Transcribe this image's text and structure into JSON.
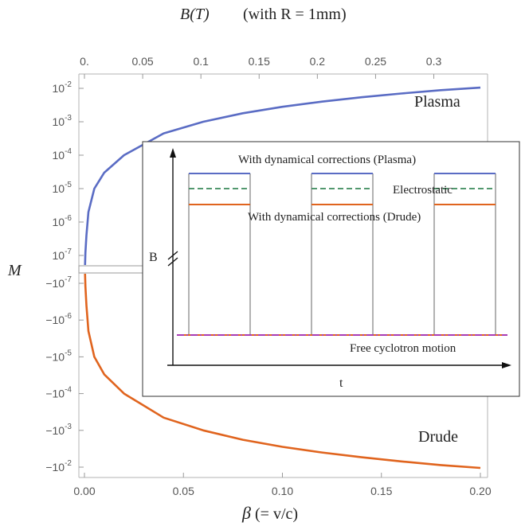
{
  "chart_data": [
    {
      "type": "line",
      "xlabel": {
        "prefix": "β",
        "rest": "(= v/c)"
      },
      "top_axis_label": {
        "main": "B(T)",
        "note": "(with R = 1mm)"
      },
      "ylabel": "M",
      "xlim": [
        0,
        0.2
      ],
      "x_ticks": [
        "0.00",
        "0.05",
        "0.10",
        "0.15",
        "0.20"
      ],
      "top_ticks": [
        "0.",
        "0.05",
        "0.1",
        "0.15",
        "0.2",
        "0.25",
        "0.3"
      ],
      "top_axis_max": 0.34,
      "y_ticks_upper": [
        {
          "exp": -2,
          "label_base": "10",
          "label_exp": "-2"
        },
        {
          "exp": -3,
          "label_base": "10",
          "label_exp": "-3"
        },
        {
          "exp": -4,
          "label_base": "10",
          "label_exp": "-4"
        },
        {
          "exp": -5,
          "label_base": "10",
          "label_exp": "-5"
        },
        {
          "exp": -6,
          "label_base": "10",
          "label_exp": "-6"
        },
        {
          "exp": -7,
          "label_base": "10",
          "label_exp": "-7"
        }
      ],
      "y_ticks_lower": [
        {
          "exp": -7,
          "label_base": "−10",
          "label_exp": "-7"
        },
        {
          "exp": -6,
          "label_base": "−10",
          "label_exp": "-6"
        },
        {
          "exp": -5,
          "label_base": "−10",
          "label_exp": "-5"
        },
        {
          "exp": -4,
          "label_base": "−10",
          "label_exp": "-4"
        },
        {
          "exp": -3,
          "label_base": "−10",
          "label_exp": "-3"
        },
        {
          "exp": -2,
          "label_base": "−10",
          "label_exp": "-2"
        }
      ],
      "series": [
        {
          "name": "Plasma",
          "color": "#5a6cc4",
          "x": [
            0.0005,
            0.001,
            0.002,
            0.005,
            0.01,
            0.02,
            0.04,
            0.06,
            0.08,
            0.1,
            0.12,
            0.14,
            0.16,
            0.18,
            0.2
          ],
          "y": [
            1.2e-07,
            4e-07,
            2e-06,
            1e-05,
            3e-05,
            0.0001,
            0.00045,
            0.001,
            0.0018,
            0.0028,
            0.004,
            0.0054,
            0.007,
            0.0088,
            0.0105
          ]
        },
        {
          "name": "Drude",
          "color": "#e0641e",
          "x": [
            0.0005,
            0.001,
            0.002,
            0.005,
            0.01,
            0.02,
            0.04,
            0.06,
            0.08,
            0.1,
            0.12,
            0.14,
            0.16,
            0.18,
            0.2
          ],
          "y": [
            -1.2e-07,
            -4e-07,
            -2e-06,
            -1e-05,
            -3e-05,
            -0.0001,
            -0.00045,
            -0.001,
            -0.0018,
            -0.0028,
            -0.004,
            -0.0054,
            -0.007,
            -0.0088,
            -0.0105
          ]
        }
      ]
    },
    {
      "type": "line",
      "xlabel": "t",
      "ylabel": "B",
      "series": [
        {
          "name": "With dynamical corrections (Plasma)",
          "color": "#5a6cc4",
          "style": "solid"
        },
        {
          "name": "Electrostatic",
          "color": "#3a8a5a",
          "style": "dashed"
        },
        {
          "name": "With dynamical corrections (Drude)",
          "color": "#e0641e",
          "style": "solid"
        },
        {
          "name": "Free cyclotron motion",
          "color": "#a83cb4",
          "style": "dash-dot"
        }
      ],
      "pulse_color": "#888888",
      "pulses": 3
    }
  ]
}
